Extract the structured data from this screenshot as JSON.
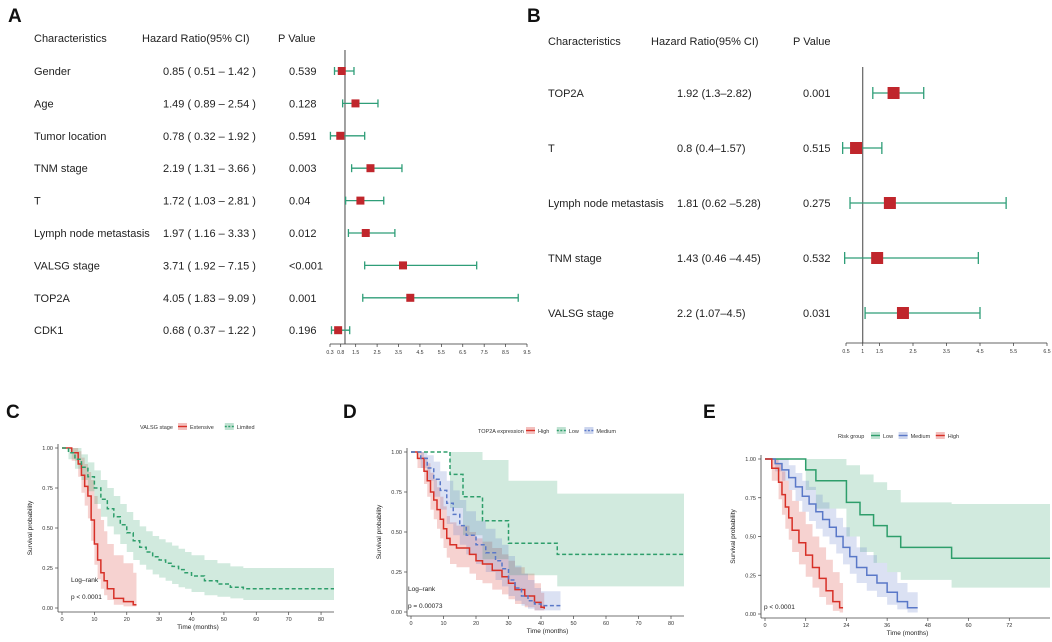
{
  "chart_data": [
    {
      "panel": "A",
      "type": "forest",
      "columns": [
        "Characteristics",
        "Hazard Ratio(95% CI)",
        "P  Value"
      ],
      "rows": [
        {
          "label": "Gender",
          "hr_text": "0.85 ( 0.51 – 1.42 )",
          "p": "0.539",
          "hr": 0.85,
          "lo": 0.51,
          "hi": 1.42
        },
        {
          "label": "Age",
          "hr_text": "1.49 ( 0.89 – 2.54 )",
          "p": "0.128",
          "hr": 1.49,
          "lo": 0.89,
          "hi": 2.54
        },
        {
          "label": "Tumor location",
          "hr_text": "0.78 ( 0.32 – 1.92 )",
          "p": "0.591",
          "hr": 0.78,
          "lo": 0.32,
          "hi": 1.92
        },
        {
          "label": "TNM  stage",
          "hr_text": "2.19 ( 1.31 – 3.66 )",
          "p": "0.003",
          "hr": 2.19,
          "lo": 1.31,
          "hi": 3.66
        },
        {
          "label": "T",
          "hr_text": "1.72 ( 1.03 – 2.81 )",
          "p": "0.04",
          "hr": 1.72,
          "lo": 1.03,
          "hi": 2.81
        },
        {
          "label": "Lymph node metastasis",
          "hr_text": "1.97 ( 1.16 – 3.33 )",
          "p": "0.012",
          "hr": 1.97,
          "lo": 1.16,
          "hi": 3.33
        },
        {
          "label": "VALSG  stage",
          "hr_text": "3.71 ( 1.92 – 7.15 )",
          "p": "<0.001",
          "hr": 3.71,
          "lo": 1.92,
          "hi": 7.15
        },
        {
          "label": "TOP2A",
          "hr_text": "4.05 ( 1.83 – 9.09 )",
          "p": "0.001",
          "hr": 4.05,
          "lo": 1.83,
          "hi": 9.09
        },
        {
          "label": "CDK1",
          "hr_text": "0.68 ( 0.37 – 1.22 )",
          "p": "0.196",
          "hr": 0.68,
          "lo": 0.37,
          "hi": 1.22
        }
      ],
      "xticks": [
        "0.3",
        "0.8",
        "1.5",
        "2.5",
        "3.5",
        "4.5",
        "5.5",
        "6.5",
        "7.5",
        "8.5",
        "9.5"
      ],
      "xlim": [
        0.3,
        9.5
      ],
      "reference": 1
    },
    {
      "panel": "B",
      "type": "forest",
      "columns": [
        "Characteristics",
        "Hazard Ratio(95% CI)",
        "P  Value"
      ],
      "rows": [
        {
          "label": "TOP2A",
          "hr_text": "1.92 (1.3–2.82)",
          "p": "0.001",
          "hr": 1.92,
          "lo": 1.3,
          "hi": 2.82
        },
        {
          "label": "T",
          "hr_text": "0.8 (0.4–1.57)",
          "p": "0.515",
          "hr": 0.8,
          "lo": 0.4,
          "hi": 1.57
        },
        {
          "label": "Lymph node metastasis",
          "hr_text": "1.81  (0.62 –5.28)",
          "p": "0.275",
          "hr": 1.81,
          "lo": 0.62,
          "hi": 5.28
        },
        {
          "label": "TNM  stage",
          "hr_text": "1.43  (0.46 –4.45)",
          "p": "0.532",
          "hr": 1.43,
          "lo": 0.46,
          "hi": 4.45
        },
        {
          "label": "VALSG  stage",
          "hr_text": "2.2 (1.07–4.5)",
          "p": "0.031",
          "hr": 2.2,
          "lo": 1.07,
          "hi": 4.5
        }
      ],
      "xticks": [
        "0.5",
        "1",
        "1.5",
        "2.5",
        "3.5",
        "4.5",
        "5.5",
        "6.5"
      ],
      "xlim": [
        0.5,
        6.5
      ],
      "reference": 1
    },
    {
      "panel": "C",
      "type": "line",
      "legend_title": "VALSG stage",
      "series": [
        {
          "name": "Extensive",
          "color": "#d73027",
          "dash": false,
          "x": [
            0,
            3,
            5,
            6,
            7,
            8,
            9,
            10,
            11,
            12,
            13,
            14,
            16,
            19,
            22,
            23
          ],
          "y": [
            1,
            0.97,
            0.9,
            0.83,
            0.76,
            0.7,
            0.55,
            0.4,
            0.3,
            0.22,
            0.17,
            0.12,
            0.06,
            0.04,
            0.02,
            0.02
          ],
          "lo": [
            1,
            0.92,
            0.82,
            0.72,
            0.64,
            0.56,
            0.42,
            0.27,
            0.18,
            0.12,
            0.08,
            0.05,
            0.02,
            0.01,
            0.01,
            0.01
          ],
          "hi": [
            1,
            1,
            0.98,
            0.94,
            0.9,
            0.85,
            0.8,
            0.7,
            0.62,
            0.55,
            0.48,
            0.4,
            0.33,
            0.28,
            0.22,
            0.22
          ]
        },
        {
          "name": "Limited",
          "color": "#2e9e6b",
          "dash": true,
          "x": [
            0,
            2,
            4,
            6,
            8,
            10,
            12,
            14,
            16,
            18,
            20,
            22,
            24,
            26,
            28,
            30,
            32,
            34,
            36,
            38,
            40,
            44,
            48,
            52,
            56,
            60,
            70,
            84
          ],
          "y": [
            1,
            0.97,
            0.93,
            0.88,
            0.82,
            0.75,
            0.68,
            0.62,
            0.57,
            0.52,
            0.47,
            0.42,
            0.38,
            0.35,
            0.32,
            0.3,
            0.28,
            0.26,
            0.24,
            0.22,
            0.2,
            0.17,
            0.15,
            0.13,
            0.12,
            0.12,
            0.12,
            0.12
          ],
          "lo": [
            1,
            0.93,
            0.87,
            0.8,
            0.73,
            0.65,
            0.57,
            0.51,
            0.46,
            0.4,
            0.35,
            0.3,
            0.27,
            0.24,
            0.21,
            0.19,
            0.17,
            0.15,
            0.13,
            0.12,
            0.1,
            0.08,
            0.07,
            0.06,
            0.05,
            0.05,
            0.05,
            0.05
          ],
          "hi": [
            1,
            1,
            1,
            0.96,
            0.91,
            0.86,
            0.8,
            0.75,
            0.7,
            0.65,
            0.6,
            0.55,
            0.51,
            0.48,
            0.45,
            0.43,
            0.41,
            0.39,
            0.37,
            0.35,
            0.33,
            0.3,
            0.28,
            0.26,
            0.25,
            0.25,
            0.25,
            0.25
          ]
        }
      ],
      "annotations": [
        "Log–rank",
        "p < 0.0001"
      ],
      "xlabel": "Time (months)",
      "ylabel": "Survival probability",
      "xticks": [
        0,
        10,
        20,
        30,
        40,
        50,
        60,
        70,
        80
      ],
      "yticks": [
        "0.00",
        "0.25",
        "0.50",
        "0.75",
        "1.00"
      ],
      "xlim": [
        0,
        84
      ],
      "ylim": [
        0,
        1
      ]
    },
    {
      "panel": "D",
      "type": "line",
      "legend_title": "TOP2A expression",
      "series": [
        {
          "name": "High",
          "color": "#d73027",
          "dash": false,
          "x": [
            0,
            2,
            4,
            5,
            6,
            7,
            8,
            9,
            10,
            11,
            12,
            14,
            16,
            18,
            20,
            22,
            25,
            28,
            30,
            32,
            35,
            38,
            40,
            41
          ],
          "y": [
            1,
            0.96,
            0.88,
            0.82,
            0.75,
            0.7,
            0.64,
            0.58,
            0.52,
            0.46,
            0.42,
            0.4,
            0.4,
            0.36,
            0.32,
            0.3,
            0.26,
            0.22,
            0.18,
            0.14,
            0.1,
            0.06,
            0.03,
            0.02
          ],
          "lo": [
            1,
            0.9,
            0.8,
            0.72,
            0.64,
            0.58,
            0.52,
            0.46,
            0.4,
            0.34,
            0.3,
            0.28,
            0.28,
            0.24,
            0.2,
            0.18,
            0.14,
            0.11,
            0.08,
            0.05,
            0.03,
            0.01,
            0.01,
            0.01
          ],
          "hi": [
            1,
            1,
            0.97,
            0.93,
            0.87,
            0.83,
            0.78,
            0.72,
            0.66,
            0.6,
            0.56,
            0.54,
            0.54,
            0.5,
            0.46,
            0.44,
            0.4,
            0.36,
            0.32,
            0.28,
            0.24,
            0.18,
            0.12,
            0.12
          ]
        },
        {
          "name": "Low",
          "color": "#2e9e6b",
          "dash": true,
          "x": [
            0,
            10,
            12,
            16,
            20,
            22,
            26,
            30,
            35,
            40,
            45,
            50,
            60,
            70,
            84
          ],
          "y": [
            1,
            1,
            0.86,
            0.72,
            0.72,
            0.57,
            0.57,
            0.43,
            0.43,
            0.43,
            0.36,
            0.36,
            0.36,
            0.36,
            0.36
          ],
          "lo": [
            1,
            1,
            0.65,
            0.48,
            0.48,
            0.33,
            0.33,
            0.23,
            0.23,
            0.23,
            0.16,
            0.16,
            0.16,
            0.16,
            0.16
          ],
          "hi": [
            1,
            1,
            1,
            1,
            1,
            0.95,
            0.95,
            0.82,
            0.82,
            0.82,
            0.74,
            0.74,
            0.74,
            0.74,
            0.74
          ]
        },
        {
          "name": "Medium",
          "color": "#5a78c8",
          "dash": true,
          "x": [
            0,
            3,
            5,
            7,
            9,
            11,
            13,
            15,
            17,
            20,
            23,
            26,
            28,
            30,
            32,
            34,
            36,
            38,
            40,
            43,
            46
          ],
          "y": [
            1,
            0.96,
            0.9,
            0.83,
            0.76,
            0.68,
            0.61,
            0.54,
            0.48,
            0.42,
            0.37,
            0.32,
            0.27,
            0.2,
            0.15,
            0.1,
            0.07,
            0.05,
            0.04,
            0.04,
            0.04
          ],
          "lo": [
            1,
            0.9,
            0.82,
            0.72,
            0.64,
            0.55,
            0.48,
            0.42,
            0.36,
            0.3,
            0.25,
            0.2,
            0.16,
            0.1,
            0.07,
            0.04,
            0.02,
            0.01,
            0.01,
            0.01,
            0.01
          ],
          "hi": [
            1,
            1,
            0.98,
            0.94,
            0.88,
            0.82,
            0.76,
            0.7,
            0.63,
            0.57,
            0.52,
            0.46,
            0.42,
            0.35,
            0.29,
            0.24,
            0.2,
            0.15,
            0.13,
            0.13,
            0.13
          ]
        }
      ],
      "annotations": [
        "Log–rank",
        "p = 0.00073"
      ],
      "xlabel": "Time (months)",
      "ylabel": "Survival probability",
      "xticks": [
        0,
        10,
        20,
        30,
        40,
        50,
        60,
        70,
        80
      ],
      "yticks": [
        "0.00",
        "0.25",
        "0.50",
        "0.75",
        "1.00"
      ],
      "xlim": [
        0,
        84
      ],
      "ylim": [
        0,
        1
      ]
    },
    {
      "panel": "E",
      "type": "line",
      "legend_title": "Risk group",
      "series": [
        {
          "name": "Low",
          "color": "#2e9e6b",
          "dash": false,
          "x": [
            0,
            10,
            12,
            15,
            20,
            24,
            28,
            32,
            36,
            40,
            45,
            55,
            60,
            70,
            84
          ],
          "y": [
            1,
            1,
            0.93,
            0.86,
            0.86,
            0.72,
            0.64,
            0.57,
            0.5,
            0.43,
            0.43,
            0.36,
            0.36,
            0.36,
            0.36
          ],
          "lo": [
            1,
            1,
            0.8,
            0.68,
            0.68,
            0.5,
            0.4,
            0.33,
            0.27,
            0.22,
            0.22,
            0.17,
            0.17,
            0.17,
            0.17
          ],
          "hi": [
            1,
            1,
            1,
            1,
            1,
            0.96,
            0.9,
            0.85,
            0.8,
            0.72,
            0.72,
            0.71,
            0.71,
            0.71,
            0.71
          ]
        },
        {
          "name": "Medium",
          "color": "#5a78c8",
          "dash": false,
          "x": [
            0,
            3,
            5,
            7,
            9,
            11,
            13,
            15,
            17,
            19,
            21,
            23,
            25,
            27,
            30,
            33,
            36,
            39,
            42,
            45
          ],
          "y": [
            1,
            0.97,
            0.93,
            0.88,
            0.82,
            0.76,
            0.71,
            0.66,
            0.61,
            0.56,
            0.5,
            0.43,
            0.37,
            0.3,
            0.25,
            0.2,
            0.14,
            0.08,
            0.04,
            0.04
          ],
          "lo": [
            1,
            0.92,
            0.86,
            0.8,
            0.73,
            0.66,
            0.6,
            0.55,
            0.5,
            0.45,
            0.39,
            0.32,
            0.26,
            0.2,
            0.15,
            0.11,
            0.06,
            0.03,
            0.01,
            0.01
          ],
          "hi": [
            1,
            1,
            1,
            0.96,
            0.91,
            0.86,
            0.82,
            0.77,
            0.72,
            0.68,
            0.62,
            0.56,
            0.5,
            0.43,
            0.38,
            0.33,
            0.27,
            0.2,
            0.14,
            0.14
          ]
        },
        {
          "name": "High",
          "color": "#d73027",
          "dash": false,
          "x": [
            0,
            2,
            4,
            5,
            6,
            7,
            8,
            10,
            12,
            14,
            16,
            18,
            20,
            22,
            23
          ],
          "y": [
            1,
            0.94,
            0.85,
            0.77,
            0.69,
            0.62,
            0.54,
            0.46,
            0.38,
            0.3,
            0.23,
            0.15,
            0.08,
            0.04,
            0.04
          ],
          "lo": [
            1,
            0.86,
            0.74,
            0.64,
            0.55,
            0.48,
            0.4,
            0.32,
            0.24,
            0.17,
            0.11,
            0.06,
            0.02,
            0.01,
            0.01
          ],
          "hi": [
            1,
            1,
            0.97,
            0.92,
            0.86,
            0.8,
            0.73,
            0.66,
            0.58,
            0.5,
            0.43,
            0.35,
            0.27,
            0.2,
            0.2
          ]
        }
      ],
      "annotations": [
        "p < 0.0001"
      ],
      "xlabel": "Time (months)",
      "ylabel": "Survival probability",
      "xticks": [
        0,
        12,
        24,
        36,
        48,
        60,
        72
      ],
      "yticks": [
        "0.00",
        "0.25",
        "0.50",
        "0.75",
        "1.00"
      ],
      "xlim": [
        0,
        84
      ],
      "ylim": [
        0,
        1
      ]
    }
  ]
}
